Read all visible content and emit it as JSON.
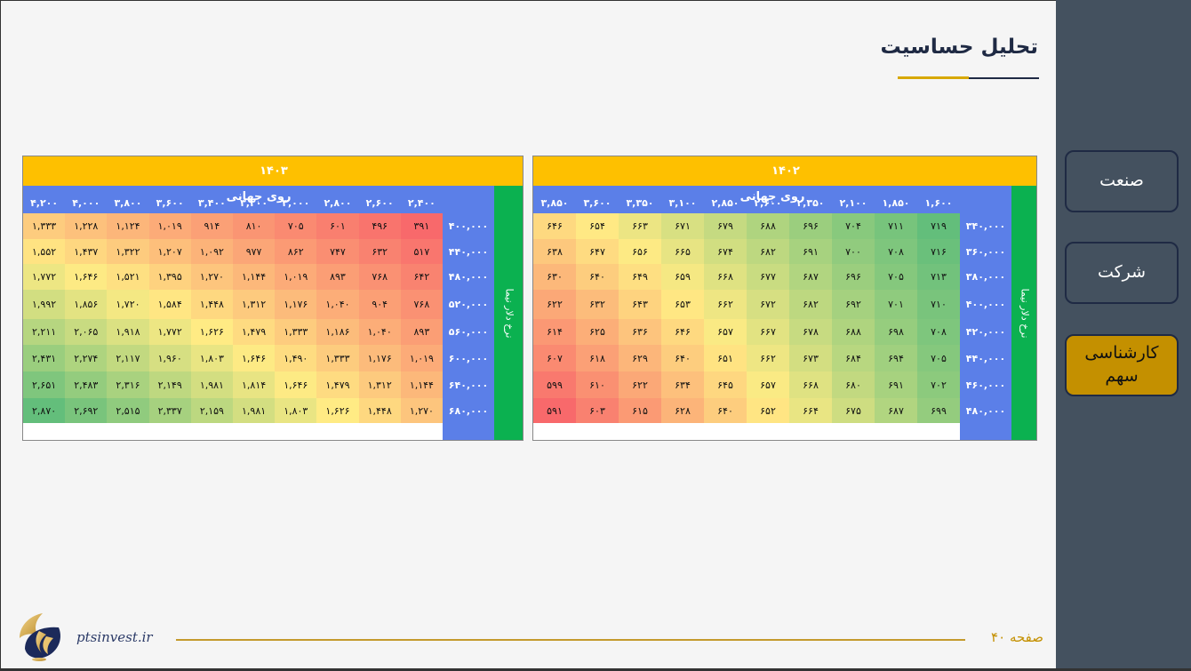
{
  "page": {
    "title": "تحلیل حساسیت",
    "website": "ptsinvest.ir",
    "page_label": "صفحه ۴۰"
  },
  "nav": {
    "items": [
      {
        "label": "صنعت"
      },
      {
        "label": "شرکت"
      },
      {
        "label": "کارشناسی سهم",
        "active": true
      }
    ]
  },
  "tables": {
    "t1403": {
      "year": "۱۴۰۳",
      "col_title": "روی جهانی",
      "row_title": "نرخ دلار نیما",
      "cols": [
        "۲,۴۰۰",
        "۲,۶۰۰",
        "۲,۸۰۰",
        "۳,۰۰۰",
        "۳,۲۰۰",
        "۳,۴۰۰",
        "۳,۶۰۰",
        "۳,۸۰۰",
        "۴,۰۰۰",
        "۴,۲۰۰"
      ],
      "rows": [
        "۴۰۰,۰۰۰",
        "۴۴۰,۰۰۰",
        "۴۸۰,۰۰۰",
        "۵۲۰,۰۰۰",
        "۵۶۰,۰۰۰",
        "۶۰۰,۰۰۰",
        "۶۴۰,۰۰۰",
        "۶۸۰,۰۰۰"
      ],
      "values": [
        [
          "۳۹۱",
          "۴۹۶",
          "۶۰۱",
          "۷۰۵",
          "۸۱۰",
          "۹۱۴",
          "۱,۰۱۹",
          "۱,۱۲۴",
          "۱,۲۲۸",
          "۱,۳۳۳"
        ],
        [
          "۵۱۷",
          "۶۳۲",
          "۷۴۷",
          "۸۶۲",
          "۹۷۷",
          "۱,۰۹۲",
          "۱,۲۰۷",
          "۱,۳۲۲",
          "۱,۴۳۷",
          "۱,۵۵۲"
        ],
        [
          "۶۴۲",
          "۷۶۸",
          "۸۹۳",
          "۱,۰۱۹",
          "۱,۱۴۴",
          "۱,۲۷۰",
          "۱,۳۹۵",
          "۱,۵۲۱",
          "۱,۶۴۶",
          "۱,۷۷۲"
        ],
        [
          "۷۶۸",
          "۹۰۴",
          "۱,۰۴۰",
          "۱,۱۷۶",
          "۱,۳۱۲",
          "۱,۴۴۸",
          "۱,۵۸۴",
          "۱,۷۲۰",
          "۱,۸۵۶",
          "۱,۹۹۲"
        ],
        [
          "۸۹۳",
          "۱,۰۴۰",
          "۱,۱۸۶",
          "۱,۳۳۳",
          "۱,۴۷۹",
          "۱,۶۲۶",
          "۱,۷۷۲",
          "۱,۹۱۸",
          "۲,۰۶۵",
          "۲,۲۱۱"
        ],
        [
          "۱,۰۱۹",
          "۱,۱۷۶",
          "۱,۳۳۳",
          "۱,۴۹۰",
          "۱,۶۴۶",
          "۱,۸۰۳",
          "۱,۹۶۰",
          "۲,۱۱۷",
          "۲,۲۷۴",
          "۲,۴۳۱"
        ],
        [
          "۱,۱۴۴",
          "۱,۳۱۲",
          "۱,۴۷۹",
          "۱,۶۴۶",
          "۱,۸۱۴",
          "۱,۹۸۱",
          "۲,۱۴۹",
          "۲,۳۱۶",
          "۲,۴۸۳",
          "۲,۶۵۱"
        ],
        [
          "۱,۲۷۰",
          "۱,۴۴۸",
          "۱,۶۲۶",
          "۱,۸۰۳",
          "۱,۹۸۱",
          "۲,۱۵۹",
          "۲,۳۳۷",
          "۲,۵۱۵",
          "۲,۶۹۲",
          "۲,۸۷۰"
        ]
      ]
    },
    "t1402": {
      "year": "۱۴۰۲",
      "col_title": "روی جهانی",
      "row_title": "نرخ دلار نیما",
      "cols": [
        "۱,۶۰۰",
        "۱,۸۵۰",
        "۲,۱۰۰",
        "۲,۳۵۰",
        "۲,۶۰۰",
        "۲,۸۵۰",
        "۳,۱۰۰",
        "۳,۳۵۰",
        "۳,۶۰۰",
        "۳,۸۵۰"
      ],
      "rows": [
        "۳۴۰,۰۰۰",
        "۳۶۰,۰۰۰",
        "۳۸۰,۰۰۰",
        "۴۰۰,۰۰۰",
        "۴۲۰,۰۰۰",
        "۴۴۰,۰۰۰",
        "۴۶۰,۰۰۰",
        "۴۸۰,۰۰۰"
      ],
      "values": [
        [
          "۷۱۹",
          "۷۱۱",
          "۷۰۴",
          "۶۹۶",
          "۶۸۸",
          "۶۷۹",
          "۶۷۱",
          "۶۶۳",
          "۶۵۴",
          "۶۴۶"
        ],
        [
          "۷۱۶",
          "۷۰۸",
          "۷۰۰",
          "۶۹۱",
          "۶۸۲",
          "۶۷۴",
          "۶۶۵",
          "۶۵۶",
          "۶۴۷",
          "۶۳۸"
        ],
        [
          "۷۱۳",
          "۷۰۵",
          "۶۹۶",
          "۶۸۷",
          "۶۷۷",
          "۶۶۸",
          "۶۵۹",
          "۶۴۹",
          "۶۴۰",
          "۶۳۰"
        ],
        [
          "۷۱۰",
          "۷۰۱",
          "۶۹۲",
          "۶۸۲",
          "۶۷۲",
          "۶۶۲",
          "۶۵۳",
          "۶۴۳",
          "۶۳۲",
          "۶۲۲"
        ],
        [
          "۷۰۸",
          "۶۹۸",
          "۶۸۸",
          "۶۷۸",
          "۶۶۷",
          "۶۵۷",
          "۶۴۶",
          "۶۳۶",
          "۶۲۵",
          "۶۱۴"
        ],
        [
          "۷۰۵",
          "۶۹۴",
          "۶۸۴",
          "۶۷۳",
          "۶۶۲",
          "۶۵۱",
          "۶۴۰",
          "۶۲۹",
          "۶۱۸",
          "۶۰۷"
        ],
        [
          "۷۰۲",
          "۶۹۱",
          "۶۸۰",
          "۶۶۸",
          "۶۵۷",
          "۶۴۵",
          "۶۳۴",
          "۶۲۲",
          "۶۱۰",
          "۵۹۹"
        ],
        [
          "۶۹۹",
          "۶۸۷",
          "۶۷۵",
          "۶۶۴",
          "۶۵۲",
          "۶۴۰",
          "۶۲۸",
          "۶۱۵",
          "۶۰۳",
          "۵۹۱"
        ]
      ]
    }
  }
}
